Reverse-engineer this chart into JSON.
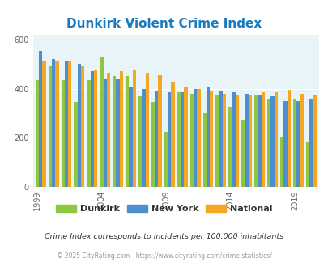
{
  "title": "Dunkirk Violent Crime Index",
  "title_color": "#1a7abf",
  "subtitle": "Crime Index corresponds to incidents per 100,000 inhabitants",
  "footer": "© 2025 CityRating.com - https://www.cityrating.com/crime-statistics/",
  "years": [
    1999,
    2000,
    2001,
    2002,
    2003,
    2004,
    2005,
    2006,
    2007,
    2008,
    2009,
    2010,
    2011,
    2012,
    2013,
    2014,
    2015,
    2016,
    2017,
    2018,
    2019,
    2020
  ],
  "dunkirk": [
    435,
    490,
    435,
    345,
    435,
    530,
    450,
    450,
    370,
    345,
    225,
    385,
    380,
    300,
    375,
    325,
    275,
    375,
    360,
    205,
    360,
    180
  ],
  "new_york": [
    555,
    520,
    515,
    500,
    470,
    440,
    440,
    410,
    400,
    390,
    385,
    385,
    400,
    405,
    390,
    385,
    380,
    375,
    370,
    350,
    350,
    360
  ],
  "national": [
    510,
    510,
    510,
    495,
    475,
    465,
    470,
    475,
    465,
    455,
    430,
    405,
    400,
    390,
    380,
    375,
    375,
    385,
    385,
    395,
    380,
    375
  ],
  "dunkirk_color": "#8dc63f",
  "new_york_color": "#4d8fce",
  "national_color": "#f5a623",
  "bg_color": "#e8f4f8",
  "ylim": [
    0,
    620
  ],
  "yticks": [
    0,
    200,
    400,
    600
  ],
  "bar_width": 0.27,
  "legend_labels": [
    "Dunkirk",
    "New York",
    "National"
  ],
  "tick_years": [
    1999,
    2004,
    2009,
    2014,
    2019
  ]
}
